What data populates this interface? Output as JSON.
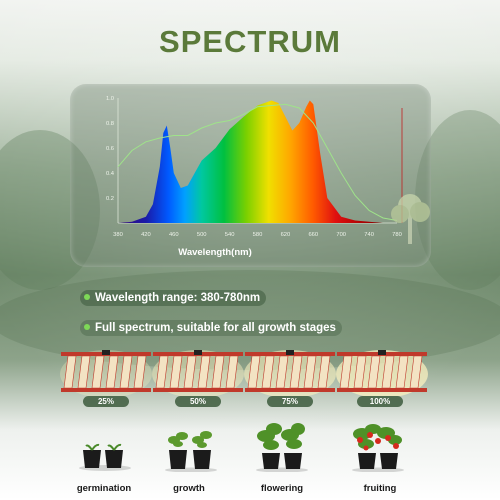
{
  "title": "SPECTRUM",
  "chart_data": {
    "type": "area",
    "xlabel": "Wavelength(nm)",
    "ylabel": "",
    "xlim": [
      380,
      780
    ],
    "ylim": [
      0,
      1.0
    ],
    "x_ticks": [
      "380",
      "420",
      "460",
      "500",
      "540",
      "580",
      "620",
      "660",
      "700",
      "740",
      "780"
    ],
    "y_ticks": [
      "1.0",
      "0.8",
      "0.6",
      "0.4",
      "0.2"
    ],
    "series": [
      {
        "x": [
          380,
          400,
          420,
          430,
          440,
          445,
          450,
          455,
          460,
          470,
          480,
          490,
          500,
          510,
          520,
          540,
          560,
          580,
          600,
          610,
          620,
          630,
          640,
          650,
          655,
          660,
          670,
          680,
          700,
          720,
          740,
          760,
          780
        ],
        "values": [
          0.0,
          0.01,
          0.05,
          0.15,
          0.45,
          0.72,
          0.78,
          0.6,
          0.4,
          0.28,
          0.3,
          0.4,
          0.5,
          0.55,
          0.6,
          0.75,
          0.85,
          0.94,
          0.98,
          0.96,
          0.85,
          0.74,
          0.8,
          0.93,
          0.98,
          0.95,
          0.55,
          0.2,
          0.05,
          0.02,
          0.01,
          0.0,
          0.0
        ]
      },
      {
        "x": [
          380,
          400,
          420,
          440,
          460,
          480,
          500,
          520,
          540,
          560,
          580,
          600,
          620,
          640,
          660,
          680,
          700,
          720,
          740,
          760,
          780
        ],
        "values": [
          0.45,
          0.58,
          0.65,
          0.68,
          0.7,
          0.7,
          0.76,
          0.8,
          0.82,
          0.87,
          0.93,
          0.94,
          0.95,
          0.92,
          0.8,
          0.6,
          0.4,
          0.22,
          0.1,
          0.04,
          0.02
        ]
      }
    ],
    "grid": false
  },
  "bullets": [
    "Wavelength range: 380-780nm",
    "Full spectrum, suitable for all growth stages"
  ],
  "lamps": [
    {
      "label": "25%",
      "level": 0.25
    },
    {
      "label": "50%",
      "level": 0.5
    },
    {
      "label": "75%",
      "level": 0.75
    },
    {
      "label": "100%",
      "level": 1.0
    }
  ],
  "stages": [
    "germination",
    "growth",
    "flowering",
    "fruiting"
  ],
  "colors": {
    "title": "#5b7a3a",
    "accent_green": "#7ed957",
    "lamp_frame": "#c0392b",
    "led_strip": "#f3e3c3"
  }
}
